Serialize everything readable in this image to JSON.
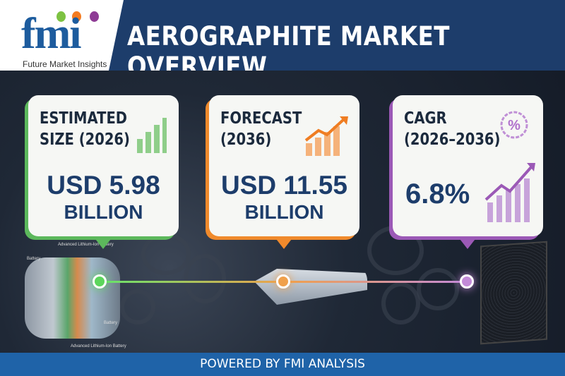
{
  "header": {
    "logo_text": "fmi",
    "logo_subtitle": "Future Market Insights",
    "title": "AEROGRAPHITE MARKET OVERVIEW"
  },
  "cards": [
    {
      "label_line1": "ESTIMATED",
      "label_line2": "SIZE (2026)",
      "value": "USD 5.98",
      "unit": "BILLION",
      "accent": "#5cb85c",
      "icon": "bar-chart-icon"
    },
    {
      "label_line1": "FORECAST",
      "label_line2": "(2036)",
      "value": "USD 11.55",
      "unit": "BILLION",
      "accent": "#f08a2c",
      "icon": "trending-up-chart-icon"
    },
    {
      "label_line1": "CAGR",
      "label_line2": "(2026–2036)",
      "value": "6.8%",
      "unit": "",
      "accent": "#9b59b6",
      "icon": "percent-badge-growth-icon"
    }
  ],
  "illustration": {
    "labels": [
      "Advanced Lithium-Ion Battery",
      "Battery",
      "Battery",
      "Advanced Lithium-Ion Battery"
    ]
  },
  "footer": {
    "text": "POWERED BY FMI ANALYSIS"
  }
}
